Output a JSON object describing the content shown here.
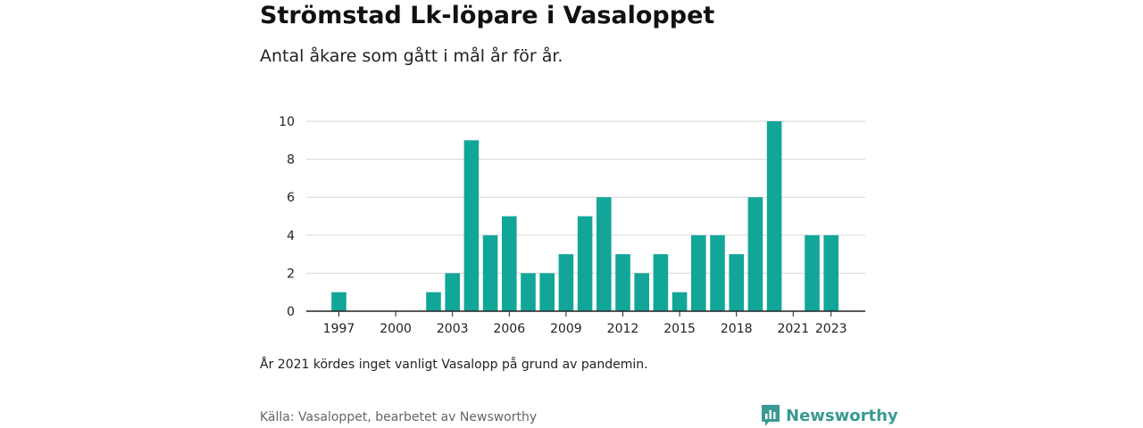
{
  "header": {
    "title": "Strömstad Lk-löpare i Vasaloppet",
    "subtitle": "Antal åkare som gått i mål år för år."
  },
  "footnote": "År 2021 kördes inget vanligt Vasalopp på grund av pandemin.",
  "source": "Källa: Vasaloppet, bearbetet av Newsworthy",
  "logo": {
    "text": "Newsworthy",
    "icon": "newsworthy-logo-icon",
    "color": "#3a9a92"
  },
  "colors": {
    "bar": "#12a699",
    "grid": "#d8d8d8",
    "axis": "#222222"
  },
  "chart_data": {
    "type": "bar",
    "title": "Strömstad Lk-löpare i Vasaloppet",
    "subtitle": "Antal åkare som gått i mål år för år.",
    "xlabel": "",
    "ylabel": "",
    "categories": [
      1997,
      1998,
      1999,
      2000,
      2001,
      2002,
      2003,
      2004,
      2005,
      2006,
      2007,
      2008,
      2009,
      2010,
      2011,
      2012,
      2013,
      2014,
      2015,
      2016,
      2017,
      2018,
      2019,
      2020,
      2021,
      2022,
      2023
    ],
    "values": [
      1,
      0,
      0,
      0,
      0,
      1,
      2,
      9,
      4,
      5,
      2,
      2,
      3,
      5,
      6,
      3,
      2,
      3,
      1,
      4,
      4,
      3,
      6,
      10,
      0,
      4,
      4
    ],
    "ylim": [
      0,
      10
    ],
    "yticks": [
      0,
      2,
      4,
      6,
      8,
      10
    ],
    "xtick_labels": [
      "1997",
      "2000",
      "2003",
      "2006",
      "2009",
      "2012",
      "2015",
      "2018",
      "2021",
      "2023"
    ],
    "grid": true,
    "legend": "none"
  }
}
